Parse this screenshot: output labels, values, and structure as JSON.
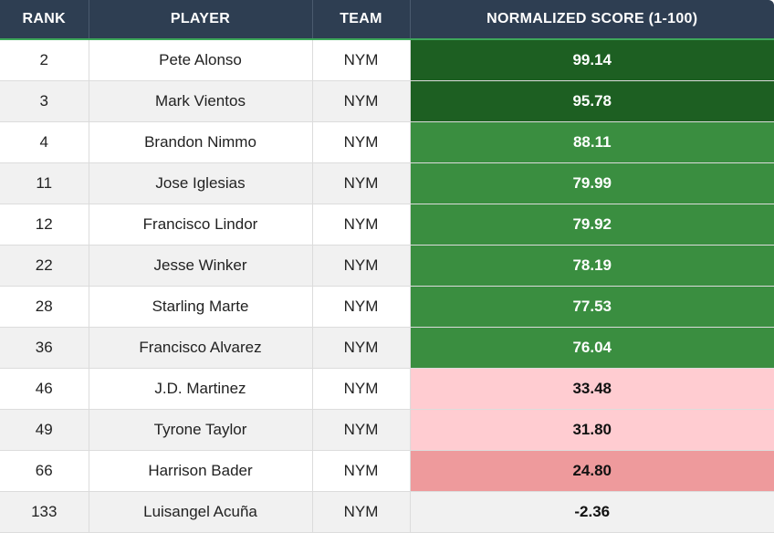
{
  "headers": {
    "rank": "RANK",
    "player": "PLAYER",
    "team": "TEAM",
    "score": "NORMALIZED SCORE (1-100)"
  },
  "rows": [
    {
      "rank": "2",
      "player": "Pete Alonso",
      "team": "NYM",
      "score": "99.14",
      "bg": "#1d5f22",
      "fg": "#ffffff"
    },
    {
      "rank": "3",
      "player": "Mark Vientos",
      "team": "NYM",
      "score": "95.78",
      "bg": "#1d5f22",
      "fg": "#ffffff"
    },
    {
      "rank": "4",
      "player": "Brandon Nimmo",
      "team": "NYM",
      "score": "88.11",
      "bg": "#3a8e40",
      "fg": "#ffffff"
    },
    {
      "rank": "11",
      "player": "Jose Iglesias",
      "team": "NYM",
      "score": "79.99",
      "bg": "#3a8e40",
      "fg": "#ffffff"
    },
    {
      "rank": "12",
      "player": "Francisco Lindor",
      "team": "NYM",
      "score": "79.92",
      "bg": "#3a8e40",
      "fg": "#ffffff"
    },
    {
      "rank": "22",
      "player": "Jesse Winker",
      "team": "NYM",
      "score": "78.19",
      "bg": "#3a8e40",
      "fg": "#ffffff"
    },
    {
      "rank": "28",
      "player": "Starling Marte",
      "team": "NYM",
      "score": "77.53",
      "bg": "#3a8e40",
      "fg": "#ffffff"
    },
    {
      "rank": "36",
      "player": "Francisco Alvarez",
      "team": "NYM",
      "score": "76.04",
      "bg": "#3a8e40",
      "fg": "#ffffff"
    },
    {
      "rank": "46",
      "player": "J.D. Martinez",
      "team": "NYM",
      "score": "33.48",
      "bg": "#ffccd1",
      "fg": "#111111"
    },
    {
      "rank": "49",
      "player": "Tyrone Taylor",
      "team": "NYM",
      "score": "31.80",
      "bg": "#ffccd1",
      "fg": "#111111"
    },
    {
      "rank": "66",
      "player": "Harrison Bader",
      "team": "NYM",
      "score": "24.80",
      "bg": "#ee9a9c",
      "fg": "#111111"
    },
    {
      "rank": "133",
      "player": "Luisangel Acuña",
      "team": "NYM",
      "score": "-2.36",
      "bg": "#f1f1f1",
      "fg": "#111111"
    }
  ]
}
